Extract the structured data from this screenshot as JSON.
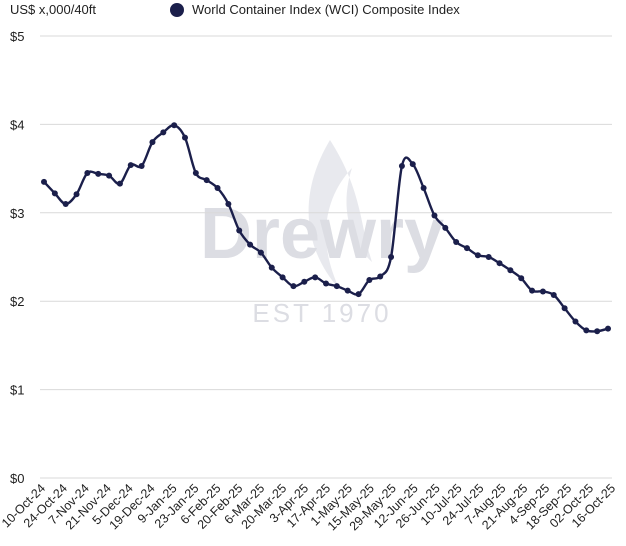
{
  "header": {
    "unit_label": "US$ x,000/40ft",
    "legend_label": "World Container Index (WCI) Composite Index"
  },
  "watermark": {
    "brand": "Drewry",
    "est": "EST 1970"
  },
  "colors": {
    "series": "#1b1f4b",
    "grid": "#d9d9d9",
    "watermark": "#dcdde3"
  },
  "chart_data": {
    "type": "line",
    "title": "",
    "ylabel": "US$ x,000/40ft",
    "xlabel": "",
    "ylim": [
      0,
      5
    ],
    "yticks": [
      {
        "value": 0,
        "label": "$0"
      },
      {
        "value": 1,
        "label": "$1"
      },
      {
        "value": 2,
        "label": "$2"
      },
      {
        "value": 3,
        "label": "$3"
      },
      {
        "value": 4,
        "label": "$4"
      },
      {
        "value": 5,
        "label": "$5"
      }
    ],
    "grid": true,
    "legend": "top",
    "x_tick_labels": [
      "10-Oct-24",
      "24-Oct-24",
      "7-Nov-24",
      "21-Nov-24",
      "5-Dec-24",
      "19-Dec-24",
      "9-Jan-25",
      "23-Jan-25",
      "6-Feb-25",
      "20-Feb-25",
      "6-Mar-25",
      "20-Mar-25",
      "3-Apr-25",
      "17-Apr-25",
      "1-May-25",
      "15-May-25",
      "29-May-25",
      "12-Jun-25",
      "26-Jun-25",
      "10-Jul-25",
      "24-Jul-25",
      "7-Aug-25",
      "21-Aug-25",
      "4-Sep-25",
      "18-Sep-25",
      "02-Oct-25",
      "16-Oct-25"
    ],
    "series": [
      {
        "name": "World Container Index (WCI) Composite Index",
        "values": [
          3.35,
          3.22,
          3.1,
          3.21,
          3.45,
          3.44,
          3.42,
          3.33,
          3.54,
          3.53,
          3.8,
          3.91,
          3.99,
          3.85,
          3.45,
          3.37,
          3.28,
          3.1,
          2.8,
          2.64,
          2.55,
          2.38,
          2.27,
          2.17,
          2.22,
          2.27,
          2.2,
          2.17,
          2.12,
          2.08,
          2.24,
          2.28,
          2.5,
          3.53,
          3.55,
          3.28,
          2.97,
          2.83,
          2.67,
          2.6,
          2.52,
          2.5,
          2.43,
          2.35,
          2.26,
          2.12,
          2.11,
          2.07,
          1.92,
          1.77,
          1.67,
          1.66,
          1.69
        ]
      }
    ]
  }
}
